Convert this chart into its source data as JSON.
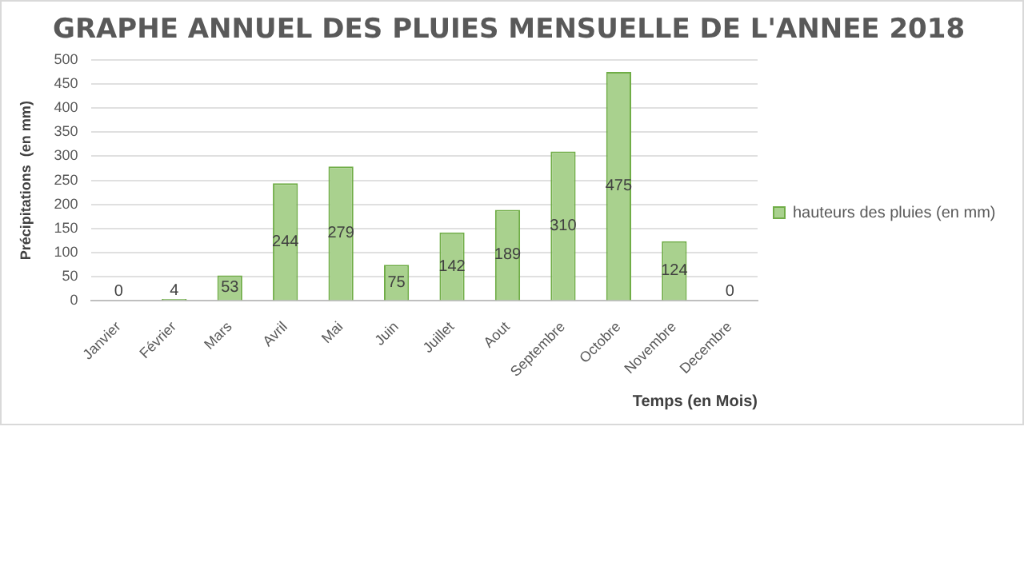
{
  "chart_data": {
    "type": "bar",
    "title": "GRAPHE ANNUEL DES PLUIES MENSUELLE DE L'ANNEE 2018",
    "xlabel": "Temps (en Mois)",
    "ylabel": "Précipitations  (en mm)",
    "categories": [
      "Janvier",
      "Février",
      "Mars",
      "Avril",
      "Mai",
      "Juin",
      "Juillet",
      "Aout",
      "Septembre",
      "Octobre",
      "Novembre",
      "Decembre"
    ],
    "series": [
      {
        "name": "hauteurs des pluies (en mm)",
        "color": "#a9d18e",
        "values": [
          0,
          4,
          53,
          244,
          279,
          75,
          142,
          189,
          310,
          475,
          124,
          0
        ]
      }
    ],
    "ylim": [
      0,
      500
    ],
    "yticks": [
      0,
      50,
      100,
      150,
      200,
      250,
      300,
      350,
      400,
      450,
      500
    ],
    "grid": "y",
    "legend": "right",
    "data_labels": true
  }
}
